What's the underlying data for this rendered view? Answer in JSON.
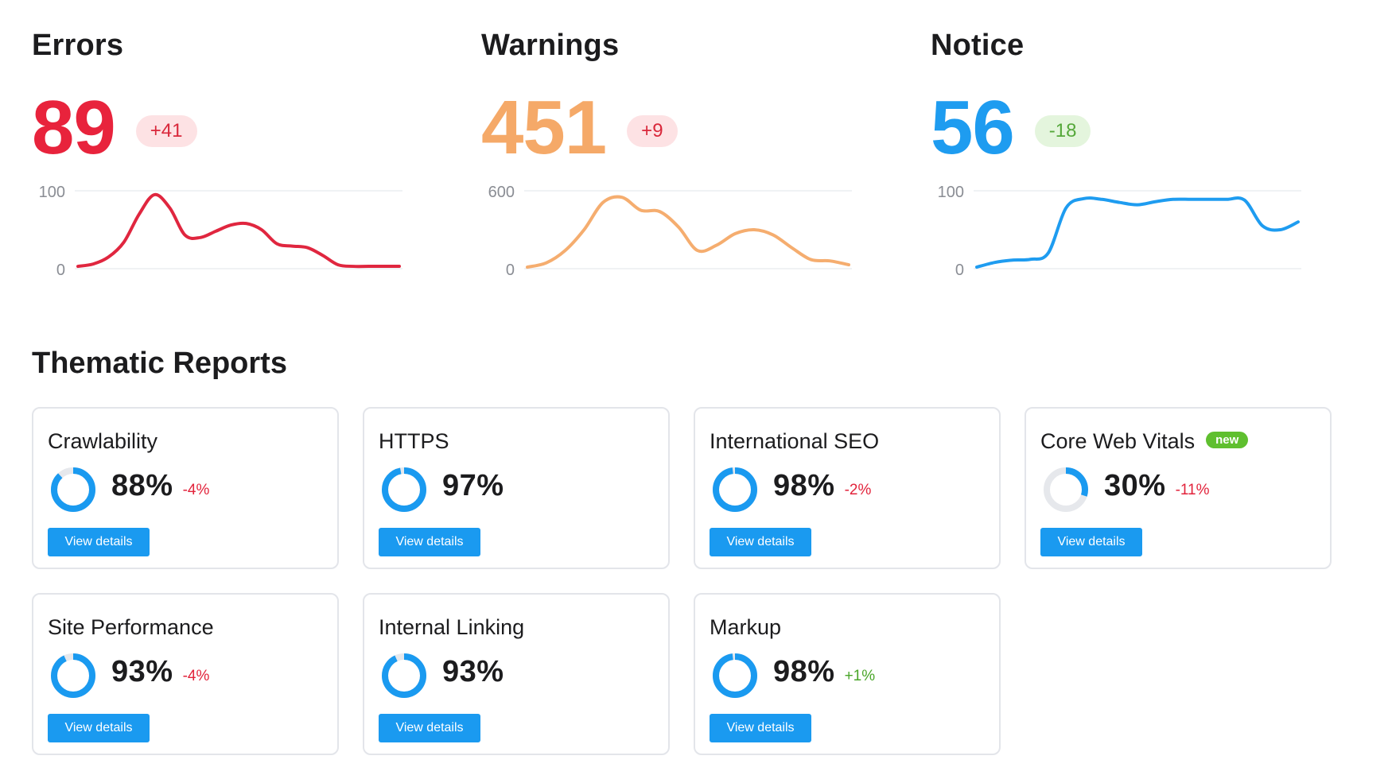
{
  "metrics": [
    {
      "title": "Errors",
      "value": "89",
      "badge": "+41",
      "value_color": "#e8233c",
      "badge_bg": "#fde2e4",
      "badge_color": "#d9283b",
      "line_color": "#e0263f",
      "ytop": "100",
      "ybottom": "0",
      "series": [
        3,
        6,
        15,
        34,
        70,
        95,
        78,
        43,
        40,
        48,
        56,
        58,
        50,
        32,
        29,
        27,
        17,
        5,
        3,
        3,
        3,
        3
      ]
    },
    {
      "title": "Warnings",
      "value": "451",
      "badge": "+9",
      "value_color": "#f5a968",
      "badge_bg": "#fde2e4",
      "badge_color": "#d9283b",
      "line_color": "#f5ad6f",
      "ytop": "600",
      "ybottom": "0",
      "series": [
        12,
        45,
        140,
        300,
        510,
        550,
        450,
        440,
        320,
        140,
        180,
        270,
        300,
        260,
        160,
        70,
        60,
        30
      ]
    },
    {
      "title": "Notice",
      "value": "56",
      "badge": "-18",
      "value_color": "#1e9cf0",
      "badge_bg": "#e4f5dd",
      "badge_color": "#55a83a",
      "line_color": "#1e9cf0",
      "ytop": "100",
      "ybottom": "0",
      "series": [
        2,
        8,
        11,
        12,
        20,
        78,
        90,
        89,
        85,
        82,
        86,
        89,
        89,
        89,
        89,
        88,
        55,
        50,
        60
      ]
    }
  ],
  "section_title": "Thematic Reports",
  "reports": [
    {
      "title": "Crawlability",
      "pct": "88%",
      "delta": "-4%",
      "delta_tone": "red",
      "new": "",
      "value": 88,
      "button": "View details"
    },
    {
      "title": "HTTPS",
      "pct": "97%",
      "delta": "",
      "delta_tone": "red",
      "new": "",
      "value": 97,
      "button": "View details"
    },
    {
      "title": "International SEO",
      "pct": "98%",
      "delta": "-2%",
      "delta_tone": "red",
      "new": "",
      "value": 98,
      "button": "View details"
    },
    {
      "title": "Core Web Vitals",
      "pct": "30%",
      "delta": "-11%",
      "delta_tone": "red",
      "new": "new",
      "value": 30,
      "button": "View details"
    },
    {
      "title": "Site Performance",
      "pct": "93%",
      "delta": "-4%",
      "delta_tone": "red",
      "new": "",
      "value": 93,
      "button": "View details"
    },
    {
      "title": "Internal Linking",
      "pct": "93%",
      "delta": "",
      "delta_tone": "red",
      "new": "",
      "value": 93,
      "button": "View details"
    },
    {
      "title": "Markup",
      "pct": "98%",
      "delta": "+1%",
      "delta_tone": "green",
      "new": "",
      "value": 98,
      "button": "View details"
    }
  ],
  "colors": {
    "accent": "#1a9af0",
    "donut_track": "#e6e8ec",
    "delta_red": "#e2233b",
    "delta_green": "#49a528"
  }
}
